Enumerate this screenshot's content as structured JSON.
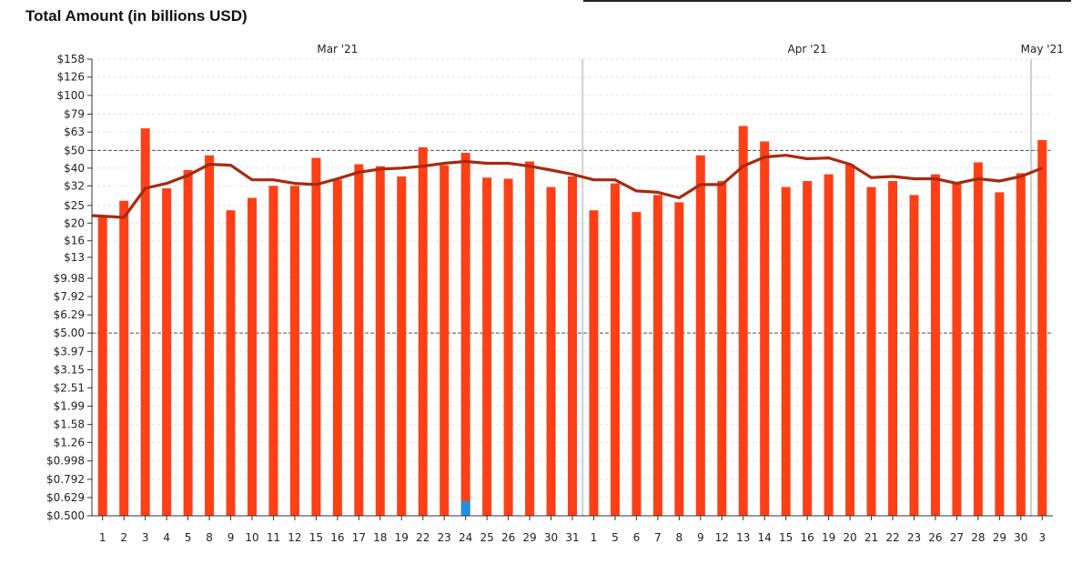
{
  "chart_data": {
    "type": "bar",
    "title": "Total Amount (in billions USD)",
    "y_scale": "log",
    "ylim": [
      0.5,
      158
    ],
    "y_ticks": [
      "$158",
      "$126",
      "$100",
      "$79",
      "$63",
      "$50",
      "$40",
      "$32",
      "$25",
      "$20",
      "$16",
      "$13",
      "$9.98",
      "$7.92",
      "$6.29",
      "$5.00",
      "$3.97",
      "$3.15",
      "$2.51",
      "$1.99",
      "$1.58",
      "$1.26",
      "$0.998",
      "$0.792",
      "$0.629",
      "$0.500"
    ],
    "y_tick_values": [
      158,
      126,
      100,
      79,
      63,
      50,
      40,
      32,
      25,
      20,
      16,
      13,
      9.98,
      7.92,
      6.29,
      5.0,
      3.97,
      3.15,
      2.51,
      1.99,
      1.58,
      1.26,
      0.998,
      0.792,
      0.629,
      0.5
    ],
    "month_labels": [
      {
        "label": "Mar '21",
        "at_index": 11
      },
      {
        "label": "Apr '21",
        "at_index": 33
      },
      {
        "label": "May '21",
        "at_index": 44
      }
    ],
    "month_dividers_before_index": [
      23,
      44
    ],
    "categories": [
      "1",
      "2",
      "3",
      "4",
      "5",
      "8",
      "9",
      "10",
      "11",
      "12",
      "15",
      "16",
      "17",
      "18",
      "19",
      "22",
      "23",
      "24",
      "25",
      "26",
      "29",
      "30",
      "31",
      "1",
      "5",
      "6",
      "7",
      "8",
      "9",
      "12",
      "13",
      "14",
      "15",
      "16",
      "19",
      "20",
      "21",
      "22",
      "23",
      "26",
      "27",
      "28",
      "29",
      "30",
      "3"
    ],
    "series": [
      {
        "type": "bar",
        "color": "#ff3f16",
        "values": [
          21.5,
          26.5,
          66,
          31,
          39,
          47,
          23.5,
          27.5,
          32,
          32,
          45.5,
          34.5,
          42,
          41,
          36,
          52,
          41.5,
          48.5,
          35.5,
          35,
          43.5,
          31.5,
          36,
          23.5,
          33,
          23,
          28.5,
          26,
          47,
          34,
          68,
          56,
          31.5,
          34,
          37,
          42,
          31.5,
          34,
          28.5,
          37,
          33,
          43,
          29.5,
          37.5,
          57
        ]
      },
      {
        "type": "line",
        "color": "#a82a0e",
        "values": [
          22,
          21.5,
          31,
          33,
          36.5,
          42,
          41.5,
          34.5,
          34.5,
          33,
          32.5,
          35,
          38,
          39.5,
          40,
          41,
          42.5,
          43.5,
          42.5,
          42.5,
          41,
          39,
          37,
          34.5,
          34.5,
          30,
          29.5,
          27.5,
          32.5,
          32.5,
          41,
          46,
          47,
          45,
          45.5,
          42,
          35.5,
          36,
          35,
          35,
          33,
          35,
          34,
          36,
          40
        ]
      },
      {
        "type": "bar",
        "color": "#1f8fe0",
        "values": [
          null,
          null,
          null,
          null,
          null,
          null,
          null,
          null,
          null,
          null,
          null,
          null,
          null,
          null,
          null,
          null,
          null,
          0.6,
          null,
          null,
          null,
          null,
          null,
          null,
          null,
          null,
          null,
          null,
          null,
          null,
          null,
          null,
          null,
          null,
          null,
          null,
          null,
          null,
          null,
          null,
          null,
          null,
          null,
          null,
          null
        ]
      }
    ],
    "dashed_reference_lines": [
      50,
      5.0
    ],
    "grid": true
  }
}
